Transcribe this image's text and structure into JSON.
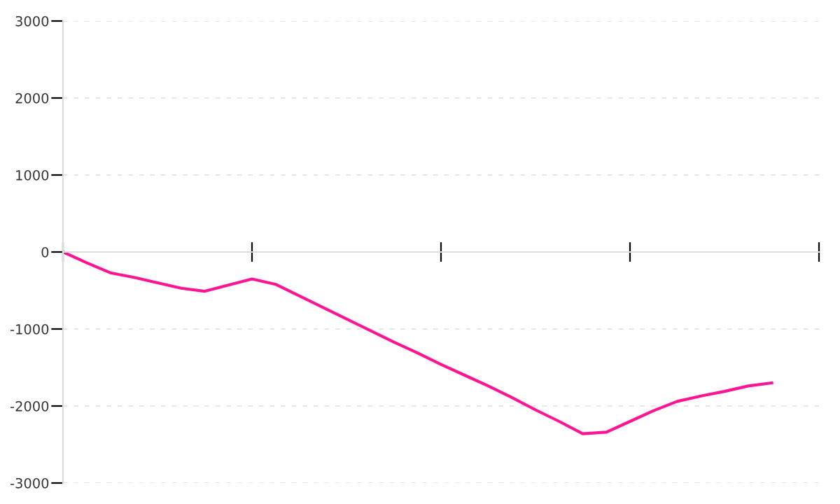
{
  "chart_data": {
    "type": "line",
    "categories": [
      null,
      null,
      null,
      null,
      null,
      null,
      null,
      null,
      null,
      null,
      null,
      null,
      null,
      null,
      null,
      null,
      null,
      null,
      null,
      null,
      null,
      null,
      null,
      null,
      null,
      null,
      null,
      null,
      null,
      null,
      null,
      null,
      null
    ],
    "series": [
      {
        "color": "#ff1493",
        "values": [
          0,
          -140,
          -270,
          -330,
          -400,
          -470,
          -510,
          -430,
          -350,
          -420,
          -570,
          -720,
          -870,
          -1020,
          -1170,
          -1310,
          -1460,
          -1600,
          -1740,
          -1890,
          -2050,
          -2200,
          -2360,
          -2340,
          -2200,
          -2060,
          -1940,
          -1870,
          -1810,
          -1740,
          -1700,
          null,
          null
        ]
      }
    ],
    "ylim": [
      -3000,
      3000
    ],
    "yticks": [
      -3000,
      -2000,
      -1000,
      0,
      1000,
      2000,
      3000
    ],
    "grid": "y",
    "marker": "none",
    "line_style": "solid"
  }
}
